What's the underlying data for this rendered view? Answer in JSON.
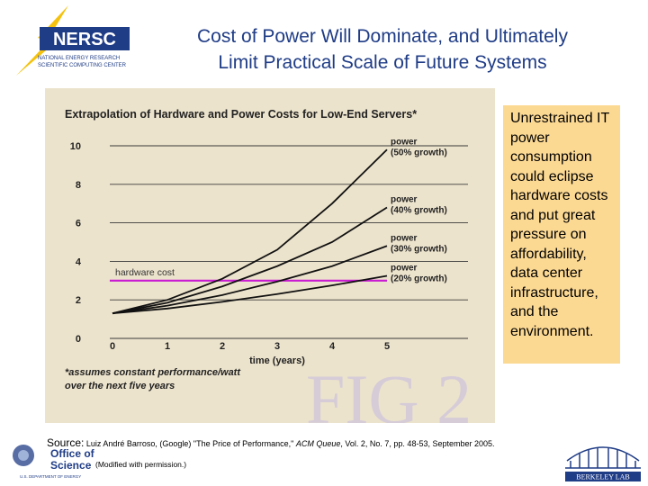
{
  "header": {
    "logo_text": "NERSC",
    "logo_subtitle_1": "NATIONAL ENERGY RESEARCH",
    "logo_subtitle_2": "SCIENTIFIC COMPUTING CENTER",
    "title_line1": "Cost of Power Will Dominate, and Ultimately",
    "title_line2": "Limit Practical Scale of Future Systems"
  },
  "callout": {
    "text": "Unrestrained IT power consumption could eclipse hardware costs and put great pressure on affordability, data center infrastructure, and the environment."
  },
  "chart_data": {
    "type": "line",
    "title": "Extrapolation of Hardware and Power Costs for Low-End Servers*",
    "xlabel": "time (years)",
    "ylabel": "",
    "x": [
      0,
      1,
      2,
      3,
      4,
      5
    ],
    "x_tick_labels": [
      "0",
      "1",
      "2",
      "3",
      "4",
      "5"
    ],
    "y_tick_labels": [
      "0",
      "2",
      "4",
      "6",
      "8",
      "10"
    ],
    "xlim": [
      0,
      5.5
    ],
    "ylim": [
      0,
      10
    ],
    "grid": true,
    "series": [
      {
        "name": "hardware cost",
        "label_line1": "hardware cost",
        "label_line2": "",
        "color": "#c81ad2",
        "values": [
          3,
          3,
          3,
          3,
          3,
          3
        ],
        "x_start": -0.05
      },
      {
        "name": "power (20% growth)",
        "label_line1": "power",
        "label_line2": "(20% growth)",
        "color": "#111111",
        "values": [
          1.3,
          1.55,
          1.9,
          2.3,
          2.75,
          3.25
        ]
      },
      {
        "name": "power (30% growth)",
        "label_line1": "power",
        "label_line2": "(30% growth)",
        "color": "#111111",
        "values": [
          1.3,
          1.7,
          2.25,
          2.95,
          3.75,
          4.8
        ]
      },
      {
        "name": "power (40% growth)",
        "label_line1": "power",
        "label_line2": "(40% growth)",
        "color": "#111111",
        "values": [
          1.3,
          1.85,
          2.7,
          3.75,
          5.0,
          6.8
        ]
      },
      {
        "name": "power (50% growth)",
        "label_line1": "power",
        "label_line2": "(50% growth)",
        "color": "#111111",
        "values": [
          1.3,
          2.0,
          3.1,
          4.6,
          7.0,
          9.8
        ]
      }
    ],
    "footnote_line1": "*assumes constant performance/watt",
    "footnote_line2": "over the next five years",
    "watermark": "FIG 2"
  },
  "source": {
    "label": "Source:",
    "text_before": " Luiz André Barroso, (Google) \"The Price of Performance,\" ",
    "journal": "ACM Queue",
    "text_after": ", Vol. 2, No. 7, pp. 48-53, September 2005.",
    "permission": "(Modified with permission.)"
  },
  "footer": {
    "doe_line1": "Office of",
    "doe_line2": "Science",
    "doe_sub": "U.S. DEPARTMENT OF ENERGY",
    "berkeley": "BERKELEY LAB"
  },
  "colors": {
    "title": "#1f3c86",
    "panel": "#ece3cc",
    "callout": "#fcd993",
    "hardware": "#c81ad2",
    "watermark": "#d5ccd8"
  }
}
